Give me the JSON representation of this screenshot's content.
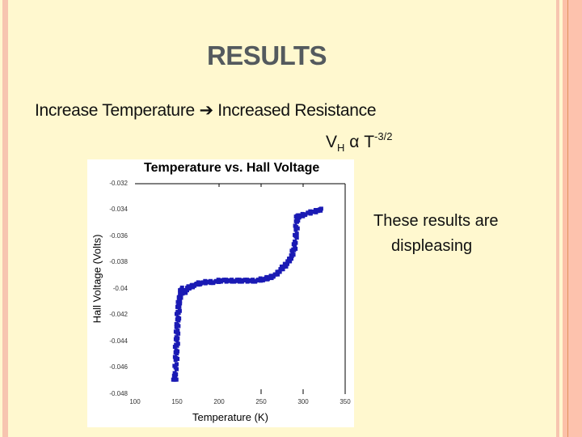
{
  "slide": {
    "title": "RESULTS",
    "line1_left": "Increase Temperature",
    "line1_arrow": "➔",
    "line1_right": "Increased Resistance",
    "formula": {
      "v": "V",
      "sub": "H",
      "alpha": " α T",
      "sup": "-3/2"
    },
    "note_line1": "These results are",
    "note_line2": "displeasing"
  },
  "theme": {
    "background": "#fff8cf",
    "border_pink": "#f7c5b0",
    "border_orange": "#e0935e",
    "title_color": "#545a5e",
    "point_color": "#1a1ab4"
  },
  "chart_data": {
    "type": "scatter",
    "title": "Temperature vs. Hall Voltage",
    "xlabel": "Temperature (K)",
    "ylabel": "Hall Voltage (Volts)",
    "xlim": [
      100,
      350
    ],
    "ylim": [
      -0.048,
      -0.032
    ],
    "xticks": [
      "100",
      "150",
      "200",
      "250",
      "300",
      "350"
    ],
    "yticks": [
      "-0.032",
      "-0.034",
      "-0.036",
      "-0.038",
      "-0.04",
      "-0.042",
      "-0.044",
      "-0.046",
      "-0.048"
    ],
    "grid": false,
    "legend": null,
    "series": [
      {
        "name": "Hall Voltage",
        "x": [
          147,
          148,
          148,
          149,
          149,
          149,
          150,
          150,
          150,
          151,
          151,
          152,
          152,
          153,
          154,
          155,
          156,
          158,
          160,
          162,
          165,
          168,
          172,
          176,
          180,
          185,
          190,
          195,
          200,
          205,
          210,
          215,
          220,
          225,
          230,
          235,
          240,
          245,
          250,
          255,
          258,
          262,
          266,
          270,
          273,
          276,
          279,
          282,
          284,
          286,
          288,
          290,
          291,
          292,
          292,
          293,
          294,
          296,
          300,
          305,
          310,
          315,
          320
        ],
        "y": [
          -0.047,
          -0.0468,
          -0.0462,
          -0.0455,
          -0.045,
          -0.0445,
          -0.044,
          -0.0435,
          -0.043,
          -0.0425,
          -0.042,
          -0.0415,
          -0.0412,
          -0.0408,
          -0.0405,
          -0.0402,
          -0.04,
          -0.0404,
          -0.0402,
          -0.04,
          -0.0399,
          -0.0398,
          -0.0397,
          -0.0396,
          -0.0396,
          -0.0395,
          -0.0395,
          -0.0395,
          -0.0394,
          -0.0394,
          -0.0394,
          -0.0394,
          -0.0394,
          -0.0394,
          -0.0394,
          -0.0394,
          -0.0394,
          -0.0394,
          -0.0393,
          -0.0393,
          -0.0392,
          -0.0391,
          -0.039,
          -0.0388,
          -0.0386,
          -0.0384,
          -0.0382,
          -0.038,
          -0.0378,
          -0.0376,
          -0.0372,
          -0.0368,
          -0.0362,
          -0.0356,
          -0.035,
          -0.0346,
          -0.0345,
          -0.0345,
          -0.0344,
          -0.0343,
          -0.0342,
          -0.0341,
          -0.034
        ]
      }
    ]
  }
}
